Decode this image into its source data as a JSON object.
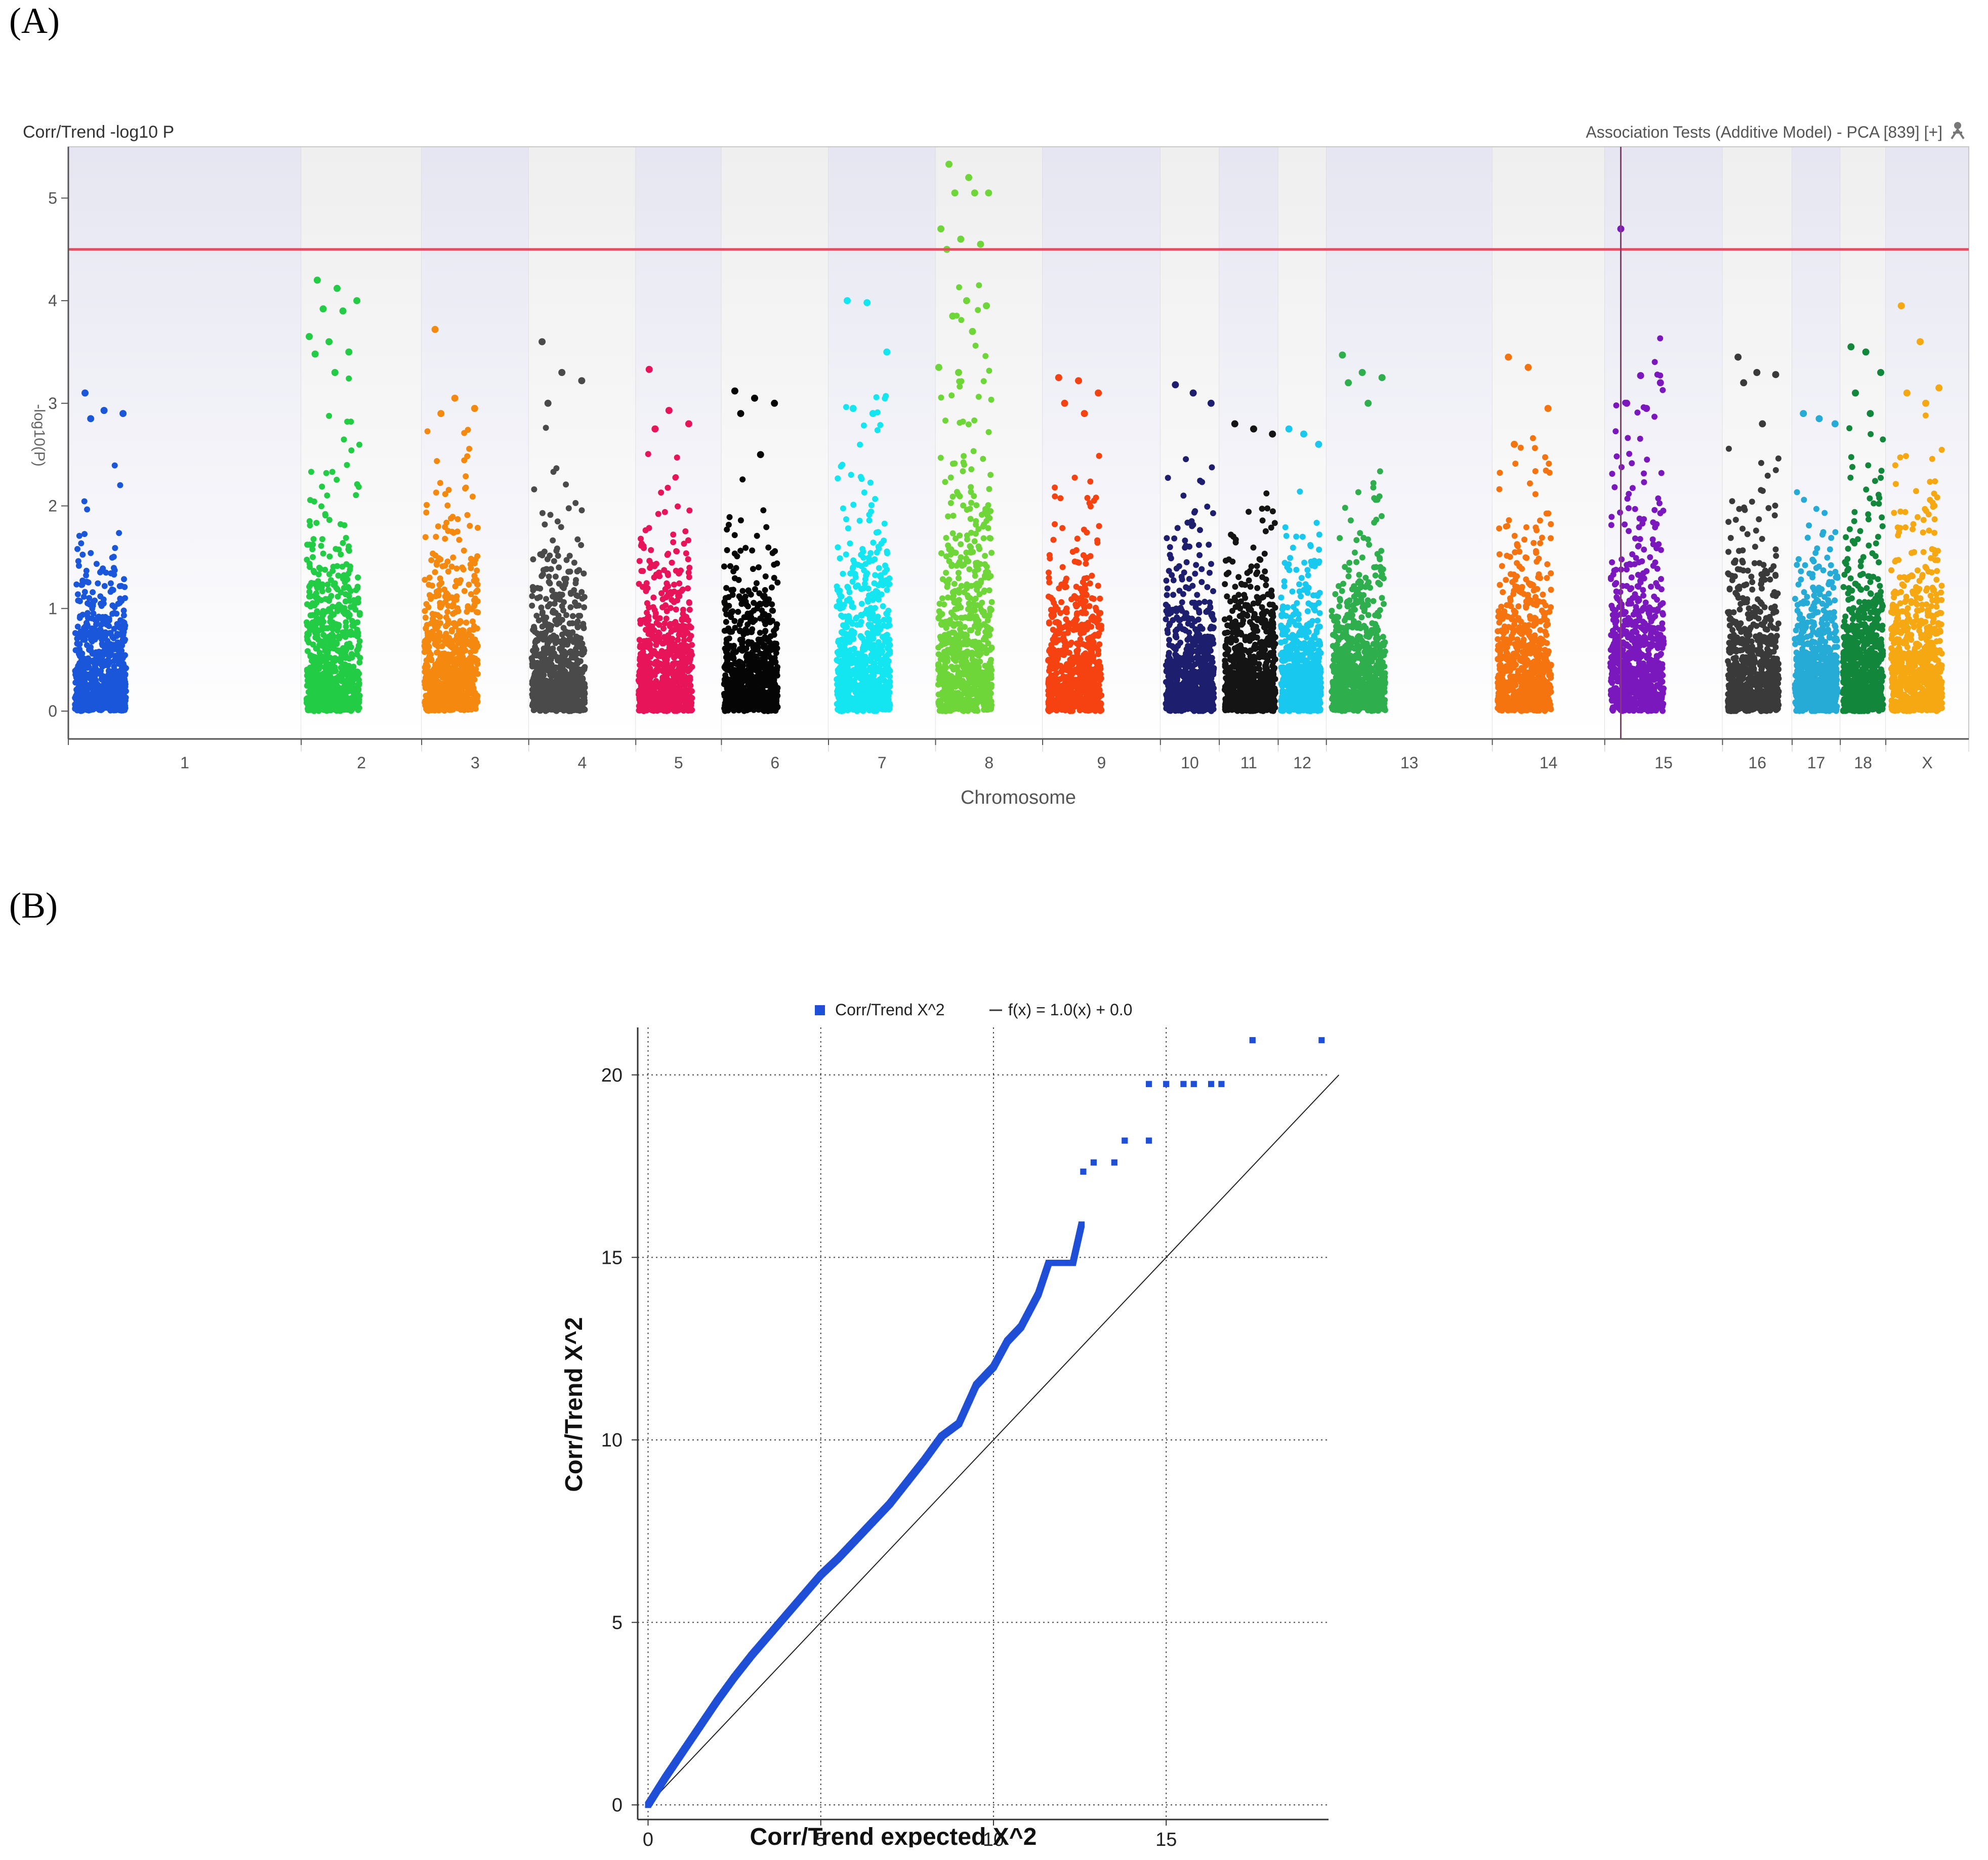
{
  "figure": {
    "panel_a_label": "(A)",
    "panel_b_label": "(B)"
  },
  "manhattan": {
    "title_left": "Corr/Trend -log10 P",
    "title_right": "Association Tests (Additive Model) - PCA [839] [+]",
    "ylabel": "-log10(P)",
    "xlabel": "Chromosome",
    "threshold": 4.5,
    "highlight_chromosome": "15",
    "colors": {
      "background_a": "#e6e6f2",
      "background_b": "#efefef",
      "threshold_line": "#e05060",
      "highlight_line": "#8a3a6a"
    }
  },
  "qq": {
    "legend_series": "Corr/Trend X^2",
    "legend_line": "f(x) = 1.0(x) + 0.0",
    "xlabel": "Corr/Trend  expected X^2",
    "ylabel": "Corr/Trend X^2",
    "color": "#1f4fd6"
  },
  "chart_data": [
    {
      "type": "scatter",
      "title": "Corr/Trend -log10 P",
      "xlabel": "Chromosome",
      "ylabel": "-log10(P)",
      "ylim": [
        0,
        5.5
      ],
      "yticks": [
        0,
        1,
        2,
        3,
        4,
        5
      ],
      "threshold": 4.5,
      "chromosomes": [
        {
          "name": "1",
          "span": [
            0,
            4.35
          ],
          "cluster": [
            0.12,
            1.08
          ],
          "color": "#1a56d9",
          "max": 3.1,
          "top": [
            3.1,
            2.93,
            2.9,
            2.85
          ]
        },
        {
          "name": "2",
          "span": [
            4.35,
            6.6
          ],
          "cluster": [
            4.45,
            5.45
          ],
          "color": "#22cc44",
          "max": 4.2,
          "top": [
            4.2,
            4.12,
            4.0,
            3.92,
            3.9,
            3.65,
            3.6,
            3.5,
            3.48,
            3.3
          ]
        },
        {
          "name": "3",
          "span": [
            6.6,
            8.6
          ],
          "cluster": [
            6.65,
            7.65
          ],
          "color": "#f5890f",
          "max": 3.72,
          "top": [
            3.72,
            3.05,
            2.95,
            2.9
          ]
        },
        {
          "name": "4",
          "span": [
            8.6,
            10.6
          ],
          "cluster": [
            8.65,
            9.65
          ],
          "color": "#4a4a4a",
          "max": 3.6,
          "top": [
            3.6,
            3.3,
            3.22,
            3.0
          ]
        },
        {
          "name": "5",
          "span": [
            10.6,
            12.2
          ],
          "cluster": [
            10.65,
            11.65
          ],
          "color": "#e8145a",
          "max": 3.33,
          "top": [
            3.33,
            2.93,
            2.8,
            2.75
          ]
        },
        {
          "name": "6",
          "span": [
            12.2,
            14.2
          ],
          "cluster": [
            12.25,
            13.25
          ],
          "color": "#050505",
          "max": 3.12,
          "top": [
            3.12,
            3.05,
            3.0,
            2.9,
            2.5
          ]
        },
        {
          "name": "7",
          "span": [
            14.2,
            16.2
          ],
          "cluster": [
            14.35,
            15.35
          ],
          "color": "#13e6f0",
          "max": 4.0,
          "top": [
            4.0,
            3.98,
            3.5,
            2.95,
            2.9
          ]
        },
        {
          "name": "8",
          "span": [
            16.2,
            18.2
          ],
          "cluster": [
            16.25,
            17.25
          ],
          "color": "#6fd63a",
          "max": 5.33,
          "top": [
            5.33,
            5.2,
            5.05,
            5.05,
            5.05,
            4.7,
            4.6,
            4.55,
            4.5,
            4.0,
            3.95,
            3.85,
            3.7,
            3.35,
            3.3
          ]
        },
        {
          "name": "9",
          "span": [
            18.2,
            20.4
          ],
          "cluster": [
            18.3,
            19.3
          ],
          "color": "#f54210",
          "max": 3.25,
          "top": [
            3.25,
            3.22,
            3.1,
            3.0,
            2.9
          ]
        },
        {
          "name": "10",
          "span": [
            20.4,
            21.5
          ],
          "cluster": [
            20.5,
            21.4
          ],
          "color": "#1e1e6e",
          "max": 3.18,
          "top": [
            3.18,
            3.1,
            3.0
          ]
        },
        {
          "name": "11",
          "span": [
            21.5,
            22.6
          ],
          "cluster": [
            21.6,
            22.55
          ],
          "color": "#141414",
          "max": 2.8,
          "top": [
            2.8,
            2.75,
            2.7
          ]
        },
        {
          "name": "12",
          "span": [
            22.6,
            23.5
          ],
          "cluster": [
            22.65,
            23.4
          ],
          "color": "#18c8ee",
          "max": 2.75,
          "top": [
            2.75,
            2.7,
            2.6
          ]
        },
        {
          "name": "13",
          "span": [
            23.5,
            26.6
          ],
          "cluster": [
            23.6,
            24.6
          ],
          "color": "#2eae4c",
          "max": 3.47,
          "top": [
            3.47,
            3.3,
            3.25,
            3.2,
            3.0
          ]
        },
        {
          "name": "14",
          "span": [
            26.6,
            28.7
          ],
          "cluster": [
            26.7,
            27.7
          ],
          "color": "#f57410",
          "max": 3.45,
          "top": [
            3.45,
            3.35,
            2.95,
            2.6
          ]
        },
        {
          "name": "15",
          "span": [
            28.7,
            30.9
          ],
          "cluster": [
            28.8,
            29.8
          ],
          "color": "#7a18be",
          "max": 4.7,
          "top": [
            4.7,
            3.27,
            3.2,
            3.0,
            2.95
          ]
        },
        {
          "name": "16",
          "span": [
            30.9,
            32.2
          ],
          "cluster": [
            31.0,
            31.95
          ],
          "color": "#3a3a3a",
          "max": 3.45,
          "top": [
            3.45,
            3.3,
            3.28,
            3.2,
            2.8
          ]
        },
        {
          "name": "17",
          "span": [
            32.2,
            33.1
          ],
          "cluster": [
            32.25,
            33.05
          ],
          "color": "#26aad6",
          "max": 2.9,
          "top": [
            2.9,
            2.85,
            2.8
          ]
        },
        {
          "name": "18",
          "span": [
            33.1,
            33.95
          ],
          "cluster": [
            33.15,
            33.9
          ],
          "color": "#12873c",
          "max": 3.55,
          "top": [
            3.55,
            3.5,
            3.3,
            3.1,
            2.9
          ]
        },
        {
          "name": "X",
          "span": [
            33.95,
            35.5
          ],
          "cluster": [
            34.05,
            35.0
          ],
          "color": "#f5a812",
          "max": 3.95,
          "top": [
            3.95,
            3.6,
            3.15,
            3.1,
            3.0
          ]
        }
      ]
    },
    {
      "type": "scatter",
      "title": "",
      "xlabel": "Corr/Trend  expected X^2",
      "ylabel": "Corr/Trend X^2",
      "xlim": [
        -0.3,
        19.7
      ],
      "ylim": [
        -0.4,
        21.3
      ],
      "xticks": [
        0,
        5,
        10,
        15
      ],
      "yticks": [
        0,
        5,
        10,
        15,
        20
      ],
      "series": [
        {
          "name": "Corr/Trend X^2",
          "points": [
            [
              0,
              0
            ],
            [
              0.5,
              0.75
            ],
            [
              1,
              1.45
            ],
            [
              1.5,
              2.15
            ],
            [
              2,
              2.85
            ],
            [
              2.5,
              3.5
            ],
            [
              3,
              4.1
            ],
            [
              3.5,
              4.65
            ],
            [
              4,
              5.2
            ],
            [
              4.5,
              5.75
            ],
            [
              5,
              6.3
            ],
            [
              5.5,
              6.75
            ],
            [
              6,
              7.25
            ],
            [
              6.5,
              7.75
            ],
            [
              7,
              8.25
            ],
            [
              7.5,
              8.85
            ],
            [
              8,
              9.45
            ],
            [
              8.5,
              10.1
            ],
            [
              9,
              10.45
            ],
            [
              9.5,
              11.5
            ],
            [
              10,
              12.0
            ],
            [
              10.4,
              12.7
            ],
            [
              10.8,
              13.1
            ],
            [
              11.3,
              14.0
            ],
            [
              11.6,
              14.85
            ],
            [
              12.0,
              14.85
            ],
            [
              12.3,
              14.85
            ],
            [
              12.55,
              15.9
            ],
            [
              12.6,
              17.35
            ],
            [
              12.9,
              17.6
            ],
            [
              13.5,
              17.6
            ],
            [
              13.8,
              18.2
            ],
            [
              14.5,
              18.2
            ],
            [
              14.5,
              19.75
            ],
            [
              15.0,
              19.75
            ],
            [
              15.5,
              19.75
            ],
            [
              15.8,
              19.75
            ],
            [
              16.3,
              19.75
            ],
            [
              16.6,
              19.75
            ],
            [
              17.5,
              20.95
            ],
            [
              19.5,
              20.95
            ]
          ]
        },
        {
          "name": "f(x) = 1.0(x) + 0.0",
          "line": [
            [
              0,
              0
            ],
            [
              20,
              20
            ]
          ]
        }
      ]
    }
  ]
}
